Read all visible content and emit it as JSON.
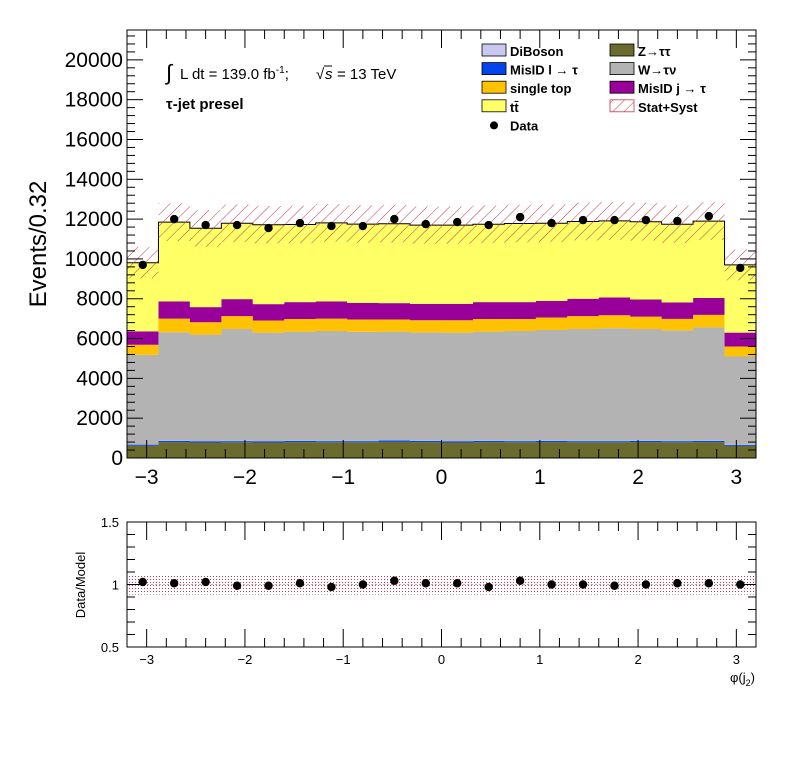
{
  "chart_data": [
    {
      "type": "bar",
      "stacked": true,
      "ylabel": "Events/0.32",
      "xlabel": "",
      "xlim": [
        -3.2,
        3.2
      ],
      "ylim": [
        0,
        21500
      ],
      "xticks": [
        -3,
        -2,
        -1,
        0,
        1,
        2,
        3
      ],
      "yticks": [
        0,
        2000,
        4000,
        6000,
        8000,
        10000,
        12000,
        14000,
        16000,
        18000,
        20000
      ],
      "annotations": {
        "lumi_prefix": "L dt = 139.0 fb",
        "lumi_sup": "-1",
        "lumi_sep": ";",
        "energy_sym": "s",
        "energy_val": "= 13 TeV",
        "region": "τ-jet presel",
        "integral_symbol": "∫",
        "sqrt_symbol": "√"
      },
      "legend_position": "top-right",
      "bin_edges": [
        -3.2,
        -2.88,
        -2.56,
        -2.24,
        -1.92,
        -1.6,
        -1.28,
        -0.96,
        -0.64,
        -0.32,
        0.0,
        0.32,
        0.64,
        0.96,
        1.28,
        1.6,
        1.92,
        2.24,
        2.56,
        2.88,
        3.2
      ],
      "series": [
        {
          "name": "Z→ττ",
          "color": "#6b6b2e",
          "values": [
            620,
            800,
            780,
            790,
            780,
            800,
            790,
            790,
            810,
            800,
            780,
            800,
            790,
            800,
            790,
            790,
            800,
            790,
            800,
            610
          ]
        },
        {
          "name": "MisID l → τ",
          "color": "#0044ee",
          "values": [
            50,
            60,
            60,
            60,
            60,
            60,
            60,
            60,
            70,
            60,
            60,
            60,
            60,
            60,
            60,
            60,
            60,
            60,
            60,
            50
          ]
        },
        {
          "name": "DiBoson",
          "color": "#c8c8f0",
          "values": [
            10,
            10,
            10,
            10,
            10,
            10,
            10,
            10,
            10,
            10,
            10,
            10,
            10,
            10,
            10,
            10,
            10,
            10,
            10,
            10
          ]
        },
        {
          "name": "W→τν",
          "color": "#b3b3b3",
          "values": [
            4500,
            5450,
            5350,
            5620,
            5450,
            5480,
            5520,
            5480,
            5460,
            5440,
            5450,
            5480,
            5520,
            5560,
            5620,
            5660,
            5610,
            5550,
            5690,
            4430
          ]
        },
        {
          "name": "single top",
          "color": "#ffc200",
          "values": [
            510,
            680,
            620,
            650,
            610,
            630,
            620,
            620,
            610,
            610,
            620,
            630,
            600,
            630,
            650,
            650,
            620,
            580,
            630,
            500
          ]
        },
        {
          "name": "MisID j → τ",
          "color": "#990099",
          "values": [
            670,
            870,
            760,
            850,
            820,
            850,
            870,
            830,
            820,
            820,
            820,
            850,
            850,
            830,
            870,
            890,
            860,
            830,
            850,
            700
          ]
        },
        {
          "name": "tt̄",
          "color": "#ffff66",
          "values": [
            3450,
            3980,
            3960,
            3810,
            3990,
            3900,
            3940,
            3960,
            3990,
            3960,
            3960,
            3910,
            3950,
            3900,
            3880,
            3850,
            3910,
            3920,
            3860,
            3400
          ]
        }
      ],
      "data_points": {
        "name": "Data",
        "x": [
          -3.04,
          -2.72,
          -2.4,
          -2.08,
          -1.76,
          -1.44,
          -1.12,
          -0.8,
          -0.48,
          -0.16,
          0.16,
          0.48,
          0.8,
          1.12,
          1.44,
          1.76,
          2.08,
          2.4,
          2.72,
          3.04
        ],
        "y": [
          9700,
          12000,
          11700,
          11700,
          11550,
          11800,
          11650,
          11650,
          12000,
          11750,
          11850,
          11700,
          12100,
          11800,
          11950,
          11950,
          11950,
          11900,
          12150,
          9550
        ]
      },
      "uncertainty": {
        "name": "Stat+Syst",
        "relative": 0.08
      },
      "legend": {
        "col1": [
          "DiBoson",
          "MisID l → τ",
          "single top",
          "tt̄",
          "Data"
        ],
        "col2": [
          "Z→ττ",
          "W→τν",
          "MisID j → τ",
          "Stat+Syst"
        ]
      }
    },
    {
      "type": "scatter",
      "ylabel": "Data/Model",
      "xlabel_main": "φ(j",
      "xlabel_sub": "2",
      "xlabel_close": ")",
      "xlim": [
        -3.2,
        3.2
      ],
      "ylim": [
        0.5,
        1.5
      ],
      "xticks": [
        -3,
        -2,
        -1,
        0,
        1,
        2,
        3
      ],
      "yticks": [
        0.5,
        1,
        1.5
      ],
      "x": [
        -3.04,
        -2.72,
        -2.4,
        -2.08,
        -1.76,
        -1.44,
        -1.12,
        -0.8,
        -0.48,
        -0.16,
        0.16,
        0.48,
        0.8,
        1.12,
        1.44,
        1.76,
        2.08,
        2.4,
        2.72,
        3.04
      ],
      "y": [
        1.02,
        1.01,
        1.02,
        0.99,
        0.99,
        1.01,
        0.98,
        1.0,
        1.03,
        1.01,
        1.01,
        0.98,
        1.03,
        1.0,
        1.0,
        0.99,
        1.0,
        1.01,
        1.01,
        1.0
      ],
      "band_relative": 0.08
    }
  ]
}
